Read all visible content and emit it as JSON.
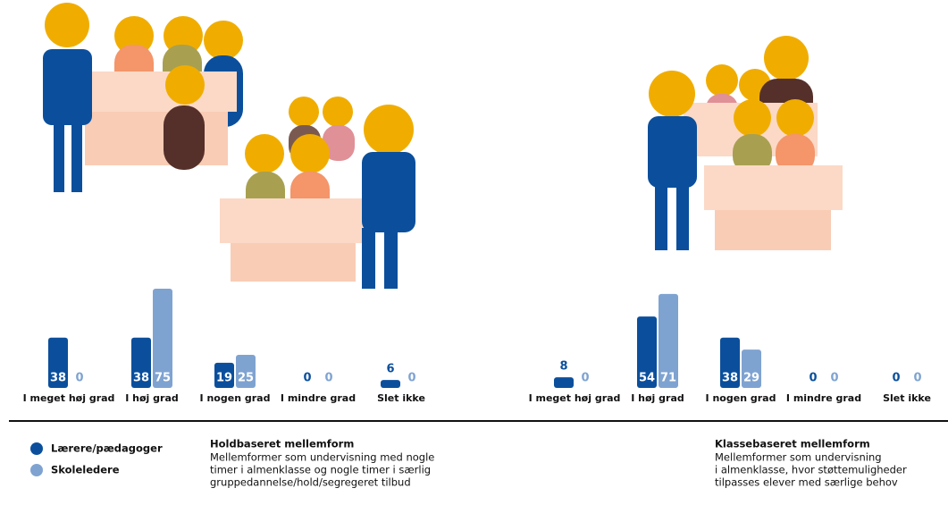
{
  "chart_data": [
    {
      "type": "bar",
      "title": "Holdbaseret mellemform",
      "subtitle": [
        "Mellemformer som undervisning med nogle",
        "timer i almenklasse og nogle timer i særlig",
        "gruppedannelse/hold/segregeret tilbud"
      ],
      "categories": [
        "I meget høj grad",
        "I høj grad",
        "I nogen grad",
        "I mindre grad",
        "Slet ikke"
      ],
      "series": [
        {
          "name": "Lærere/pædagoger",
          "color": "#0b4f9c",
          "values": [
            38,
            38,
            19,
            0,
            6
          ]
        },
        {
          "name": "Skoleledere",
          "color": "#7fa3d1",
          "values": [
            0,
            75,
            25,
            0,
            0
          ]
        }
      ]
    },
    {
      "type": "bar",
      "title": "Klassebaseret mellemform",
      "subtitle": [
        "Mellemformer som undervisning",
        "i almenklasse, hvor støttemuligheder",
        "tilpasses elever med særlige behov"
      ],
      "categories": [
        "I meget høj grad",
        "I høj grad",
        "I nogen grad",
        "I mindre grad",
        "Slet ikke"
      ],
      "series": [
        {
          "color": "#0b4f9c",
          "values": [
            8,
            54,
            38,
            0,
            0
          ]
        },
        {
          "color": "#7fa3d1",
          "values": [
            0,
            71,
            29,
            0,
            0
          ]
        }
      ]
    }
  ]
}
